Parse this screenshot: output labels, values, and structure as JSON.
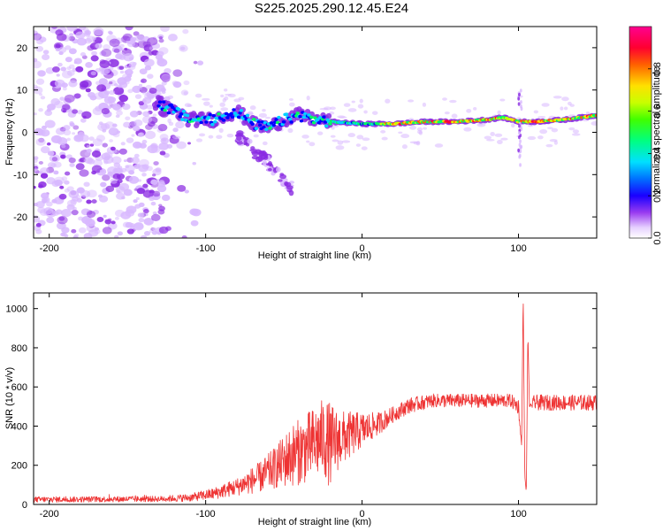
{
  "chart_data": [
    {
      "type": "heatmap",
      "title": "S225.2025.290.12.45.E24",
      "xlabel": "Height of straight line (km)",
      "ylabel": "Frequency (Hz)",
      "xlim": [
        -210,
        150
      ],
      "ylim": [
        -25,
        25
      ],
      "x_ticks": [
        -200,
        -100,
        0,
        100
      ],
      "y_ticks": [
        -20,
        -10,
        0,
        10,
        20
      ],
      "colorbar": {
        "label": "Normalized spectral amplitude",
        "range": [
          0,
          1
        ],
        "ticks": [
          0.0,
          0.2,
          0.4,
          0.6,
          0.8
        ],
        "colormap": [
          "#ffffff",
          "#d8b8ff",
          "#8a2be2",
          "#0000ff",
          "#00d0ff",
          "#00ff60",
          "#c0ff00",
          "#ffe000",
          "#ff6000",
          "#ff0040",
          "#ff0090"
        ]
      },
      "ridge": {
        "x": [
          -130,
          -110,
          -95,
          -80,
          -70,
          -60,
          -50,
          -40,
          -30,
          -20,
          0,
          20,
          40,
          60,
          80,
          90,
          100,
          110,
          130,
          150
        ],
        "freq": [
          7,
          3,
          3,
          5,
          2,
          1,
          3,
          4,
          3,
          2.5,
          2,
          2,
          2.5,
          2.5,
          3,
          3.5,
          2.5,
          2.5,
          3,
          4
        ]
      },
      "streak": {
        "x": [
          -80,
          -70,
          -60,
          -50,
          -45
        ],
        "freq": [
          -1,
          -4,
          -7,
          -11,
          -13
        ]
      }
    },
    {
      "type": "line",
      "xlabel": "Height of straight line (km)",
      "ylabel": "SNR (10 * v/v)",
      "xlim": [
        -210,
        150
      ],
      "ylim": [
        0,
        1080
      ],
      "x_ticks": [
        -200,
        -100,
        0,
        100
      ],
      "y_ticks": [
        0,
        200,
        400,
        600,
        800,
        1000
      ],
      "line_color": "#ee3333",
      "envelope": {
        "x": [
          -210,
          -130,
          -110,
          -95,
          -80,
          -65,
          -55,
          -45,
          -35,
          -25,
          -20,
          -15,
          0,
          10,
          20,
          30,
          45,
          60,
          80,
          95,
          100,
          102,
          103,
          104,
          105,
          106,
          107,
          110,
          130,
          150
        ],
        "mean": [
          25,
          28,
          35,
          55,
          90,
          140,
          190,
          250,
          290,
          340,
          300,
          330,
          380,
          410,
          460,
          505,
          530,
          530,
          530,
          530,
          500,
          300,
          1080,
          150,
          60,
          880,
          500,
          520,
          520,
          520
        ],
        "amplitude": [
          15,
          15,
          20,
          30,
          45,
          80,
          110,
          160,
          180,
          200,
          220,
          150,
          90,
          60,
          40,
          40,
          35,
          35,
          35,
          35,
          40,
          0,
          0,
          0,
          0,
          0,
          0,
          40,
          40,
          40
        ]
      }
    }
  ]
}
